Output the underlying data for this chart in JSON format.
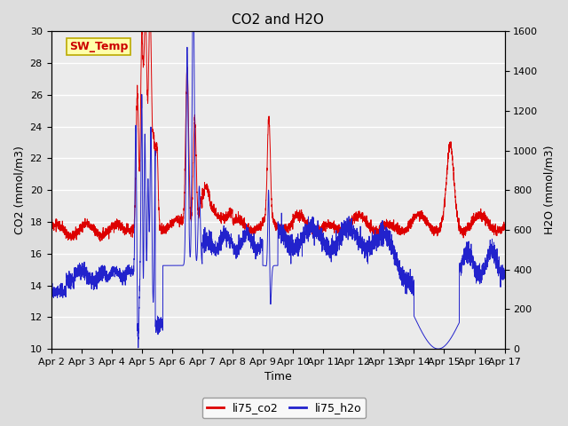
{
  "title": "CO2 and H2O",
  "xlabel": "Time",
  "ylabel_left": "CO2 (mmol/m3)",
  "ylabel_right": "H2O (mmol/m3)",
  "ylim_left": [
    10,
    30
  ],
  "ylim_right": [
    0,
    1600
  ],
  "yticks_left": [
    10,
    12,
    14,
    16,
    18,
    20,
    22,
    24,
    26,
    28,
    30
  ],
  "yticks_right": [
    0,
    200,
    400,
    600,
    800,
    1000,
    1200,
    1400,
    1600
  ],
  "xticklabels": [
    "Apr 2",
    "Apr 3",
    "Apr 4",
    "Apr 5",
    "Apr 6",
    "Apr 7",
    "Apr 8",
    "Apr 9",
    "Apr 10",
    "Apr 11",
    "Apr 12",
    "Apr 13",
    "Apr 14",
    "Apr 15",
    "Apr 16",
    "Apr 17"
  ],
  "co2_color": "#dd0000",
  "h2o_color": "#2222cc",
  "fig_facecolor": "#dddddd",
  "plot_bg_color": "#ebebeb",
  "annotation_text": "SW_Temp",
  "annotation_box_color": "#ffffaa",
  "annotation_box_edge": "#bbaa00",
  "annotation_text_color": "#cc0000",
  "legend_co2": "li75_co2",
  "legend_h2o": "li75_h2o",
  "title_fontsize": 11,
  "axis_fontsize": 9,
  "tick_fontsize": 8,
  "linewidth": 0.7
}
